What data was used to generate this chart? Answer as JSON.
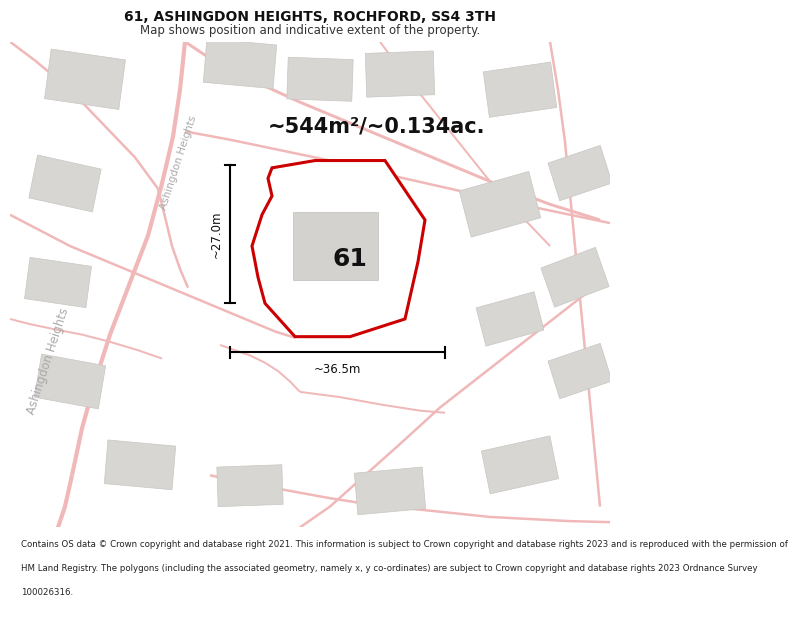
{
  "title": "61, ASHINGDON HEIGHTS, ROCHFORD, SS4 3TH",
  "subtitle": "Map shows position and indicative extent of the property.",
  "area_text": "~544m²/~0.134ac.",
  "label_61": "61",
  "dim_width": "~36.5m",
  "dim_height": "~27.0m",
  "footer_lines": [
    "Contains OS data © Crown copyright and database right 2021. This information is subject to Crown copyright and database rights 2023 and is reproduced with the permission of",
    "HM Land Registry. The polygons (including the associated geometry, namely x, y co-ordinates) are subject to Crown copyright and database rights 2023 Ordnance Survey",
    "100026316."
  ],
  "bg_color": "#f2f0ed",
  "road_color": "#f0b8b8",
  "road_lw": 1.2,
  "building_color": "#d8d6d2",
  "building_edge": "#c8c6c2",
  "plot_fill": "#ffffff",
  "plot_edge": "#cc0000",
  "plot_lw": 2.2,
  "fig_width": 6.0,
  "fig_height": 6.25,
  "title_fontsize": 10,
  "subtitle_fontsize": 8.5,
  "area_fontsize": 15,
  "label_fontsize": 18,
  "dim_fontsize": 8.5,
  "road_label_color": "#aaaaaa",
  "road_label_fontsize": 7.5
}
